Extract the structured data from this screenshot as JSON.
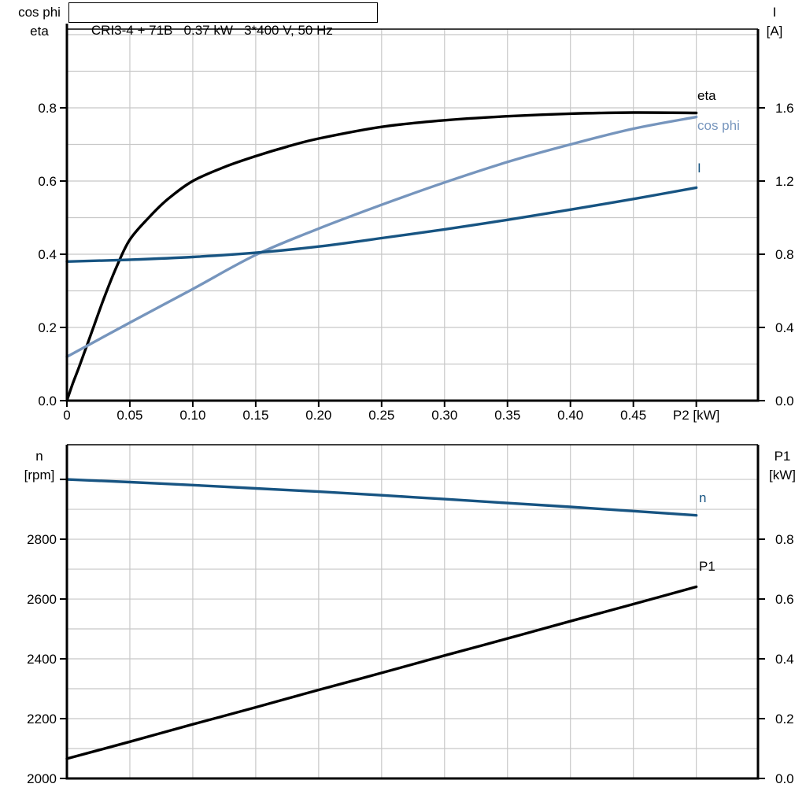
{
  "title": "CRI3-4 + 71B   0.37 kW   3*400 V, 50 Hz",
  "chart_data": [
    {
      "type": "line",
      "name": "motor-efficiency-chart",
      "x_axis": {
        "label": "P2 [kW]",
        "range": [
          0,
          0.549
        ],
        "tick_values": [
          0,
          0.05,
          0.1,
          0.15,
          0.2,
          0.25,
          0.3,
          0.35,
          0.4,
          0.45,
          0.5
        ],
        "tick_labels": [
          "0",
          "0.05",
          "0.10",
          "0.15",
          "0.20",
          "0.25",
          "0.30",
          "0.35",
          "0.40",
          "0.45",
          "P2 [kW]"
        ],
        "grid_values": [
          0.05,
          0.1,
          0.15,
          0.2,
          0.25,
          0.3,
          0.35,
          0.4,
          0.45,
          0.5
        ]
      },
      "left_axis": {
        "title_lines": [
          "cos phi",
          "eta"
        ],
        "range": [
          0,
          1.015
        ],
        "tick_values": [
          0.0,
          0.2,
          0.4,
          0.6,
          0.8
        ],
        "tick_labels": [
          "0.0",
          "0.2",
          "0.4",
          "0.6",
          "0.8"
        ],
        "grid_values": [
          0.1,
          0.2,
          0.3,
          0.4,
          0.5,
          0.6,
          0.7,
          0.8,
          0.9,
          1.0
        ],
        "extra_tick_values": []
      },
      "right_axis": {
        "title_lines": [
          "I",
          "[A]"
        ],
        "range": [
          0,
          2.03
        ],
        "tick_values": [
          0.0,
          0.4,
          0.8,
          1.2,
          1.6
        ],
        "tick_labels": [
          "0.0",
          "0.4",
          "0.8",
          "1.2",
          "1.6"
        ],
        "extra_tick_values": []
      },
      "series": [
        {
          "name": "eta",
          "label": "eta",
          "color": "#000000",
          "axis": "left",
          "x": [
            0,
            0.005,
            0.01,
            0.02,
            0.03,
            0.04,
            0.05,
            0.065,
            0.08,
            0.1,
            0.125,
            0.15,
            0.175,
            0.2,
            0.25,
            0.3,
            0.35,
            0.4,
            0.45,
            0.5
          ],
          "y": [
            0,
            0.05,
            0.095,
            0.19,
            0.285,
            0.37,
            0.44,
            0.5,
            0.55,
            0.6,
            0.638,
            0.668,
            0.694,
            0.716,
            0.748,
            0.766,
            0.777,
            0.784,
            0.787,
            0.786
          ]
        },
        {
          "name": "cos phi",
          "label": "cos phi",
          "color": "#7695bd",
          "axis": "left",
          "x": [
            0,
            0.05,
            0.1,
            0.15,
            0.2,
            0.25,
            0.3,
            0.35,
            0.4,
            0.45,
            0.5
          ],
          "y": [
            0.12,
            0.213,
            0.305,
            0.398,
            0.47,
            0.535,
            0.596,
            0.652,
            0.7,
            0.743,
            0.775
          ]
        },
        {
          "name": "I",
          "label": "I",
          "color": "#175482",
          "axis": "right",
          "x": [
            0,
            0.05,
            0.1,
            0.15,
            0.2,
            0.25,
            0.3,
            0.35,
            0.4,
            0.45,
            0.5
          ],
          "y": [
            0.76,
            0.77,
            0.785,
            0.808,
            0.842,
            0.888,
            0.936,
            0.988,
            1.044,
            1.102,
            1.164
          ]
        }
      ],
      "legend_position": "right-inline",
      "grid": true
    },
    {
      "type": "line",
      "name": "speed-power-chart",
      "x_axis": {
        "label": "",
        "range": [
          0,
          0.549
        ],
        "tick_values": [],
        "tick_labels": [],
        "grid_values": [
          0.05,
          0.1,
          0.15,
          0.2,
          0.25,
          0.3,
          0.35,
          0.4,
          0.45,
          0.5
        ]
      },
      "left_axis": {
        "title_lines": [
          "n",
          "[rpm]"
        ],
        "range": [
          2000,
          3116
        ],
        "tick_values": [
          2000,
          2200,
          2400,
          2600,
          2800
        ],
        "tick_labels": [
          "2000",
          "2200",
          "2400",
          "2600",
          "2800"
        ],
        "grid_values": [
          2100,
          2200,
          2300,
          2400,
          2500,
          2600,
          2700,
          2800,
          2900,
          3000
        ],
        "extra_tick_values": [
          3000
        ]
      },
      "right_axis": {
        "title_lines": [
          "P1",
          "[kW]"
        ],
        "range": [
          0,
          1.116
        ],
        "tick_values": [
          0.0,
          0.2,
          0.4,
          0.6,
          0.8
        ],
        "tick_labels": [
          "0.0",
          "0.2",
          "0.4",
          "0.6",
          "0.8"
        ],
        "extra_tick_values": []
      },
      "series": [
        {
          "name": "n",
          "label": "n",
          "color": "#175482",
          "axis": "left",
          "x": [
            0,
            0.05,
            0.1,
            0.15,
            0.2,
            0.25,
            0.3,
            0.35,
            0.4,
            0.45,
            0.5
          ],
          "y": [
            3000,
            2991,
            2981,
            2970,
            2959,
            2947,
            2934,
            2921,
            2908,
            2894,
            2880
          ]
        },
        {
          "name": "P1",
          "label": "P1",
          "color": "#000000",
          "axis": "right",
          "x": [
            0,
            0.05,
            0.1,
            0.15,
            0.2,
            0.25,
            0.3,
            0.35,
            0.4,
            0.45,
            0.5
          ],
          "y": [
            0.066,
            0.123,
            0.181,
            0.238,
            0.296,
            0.353,
            0.411,
            0.468,
            0.526,
            0.583,
            0.641
          ]
        }
      ],
      "legend_position": "right-inline",
      "grid": true
    }
  ],
  "colors": {
    "grid": "#c8c8c8",
    "axis": "#000000",
    "cos_phi_blue": "#7695bd",
    "dark_blue": "#175482"
  }
}
